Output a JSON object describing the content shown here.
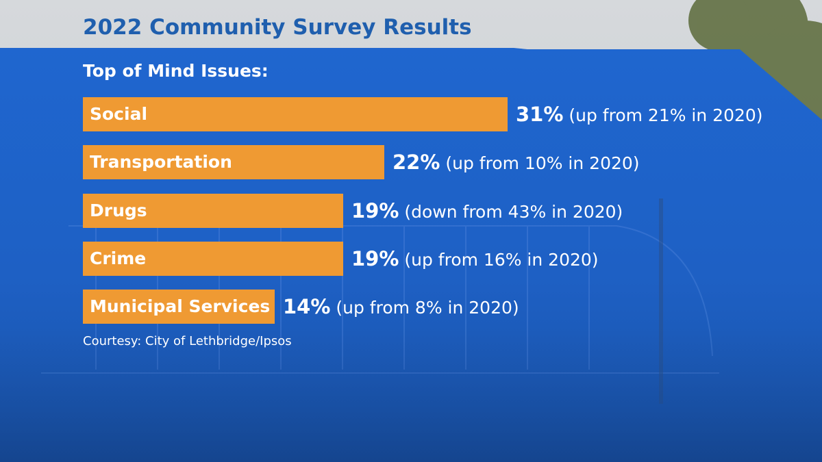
{
  "title": "2022 Community Survey Results",
  "subtitle": "Top of Mind Issues:",
  "source": "Courtesy: City of Lethbridge/Ipsos",
  "colors": {
    "title": "#1f5fae",
    "panel": "#1e64c8",
    "bar": "#ef9a33",
    "text": "#ffffff"
  },
  "chart_data": {
    "type": "bar",
    "orientation": "horizontal",
    "title": "2022 Community Survey Results",
    "subtitle": "Top of Mind Issues:",
    "categories": [
      "Social",
      "Transportation",
      "Drugs",
      "Crime",
      "Municipal Services"
    ],
    "values": [
      31,
      22,
      19,
      19,
      14
    ],
    "unit": "%",
    "value_labels": [
      "31%",
      "22%",
      "19%",
      "19%",
      "14%"
    ],
    "comparisons": [
      "(up from 21% in 2020)",
      "(up from 10% in 2020)",
      "(down from 43% in 2020)",
      "(up from 16% in 2020)",
      "(up from 8% in 2020)"
    ],
    "previous_year": 2020,
    "previous_values": [
      21,
      10,
      43,
      16,
      8
    ],
    "xlim": [
      0,
      31
    ],
    "grid": false,
    "legend": "none"
  }
}
